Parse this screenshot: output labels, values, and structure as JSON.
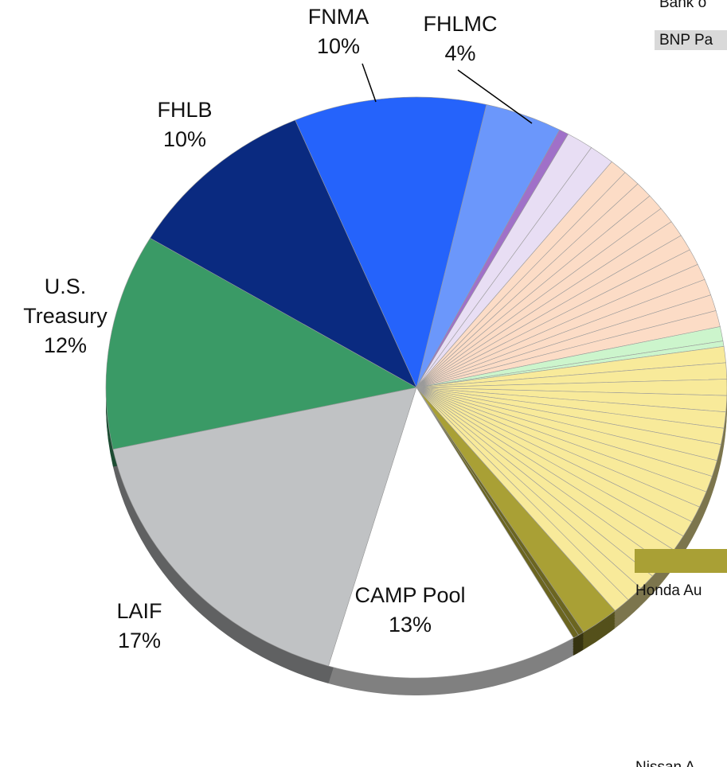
{
  "chart_data": {
    "type": "pie",
    "categories": [
      "FNMA",
      "FHLMC",
      null,
      null,
      null,
      null,
      null,
      null,
      null,
      null,
      null,
      null,
      null,
      null,
      null,
      null,
      null,
      null,
      null,
      null,
      null,
      null,
      null,
      null,
      null,
      null,
      null,
      null,
      null,
      null,
      null,
      null,
      null,
      null,
      null,
      null,
      null,
      null,
      null,
      null,
      "CAMP Pool",
      "LAIF",
      "U.S. Treasury",
      "FHLB"
    ],
    "values": [
      10,
      4,
      0.5,
      1.4,
      1.3,
      0.9,
      0.9,
      0.9,
      0.9,
      0.9,
      0.9,
      0.9,
      0.9,
      0.9,
      0.9,
      0.9,
      0.9,
      0.8,
      0.3,
      0.9,
      0.9,
      0.9,
      0.9,
      0.9,
      0.9,
      0.9,
      0.9,
      0.9,
      0.9,
      0.9,
      0.9,
      0.9,
      0.9,
      0.9,
      0.9,
      0.9,
      0.9,
      2.0,
      0.3,
      0.3,
      13,
      17,
      12,
      10
    ],
    "value_labels": [
      "10%",
      "4%",
      null,
      null,
      null,
      null,
      null,
      null,
      null,
      null,
      null,
      null,
      null,
      null,
      null,
      null,
      null,
      null,
      null,
      null,
      null,
      null,
      null,
      null,
      null,
      null,
      null,
      null,
      null,
      null,
      null,
      null,
      null,
      null,
      null,
      null,
      null,
      null,
      null,
      null,
      "13%",
      "17%",
      "12%",
      "10%"
    ],
    "colors": [
      "#2563fb",
      "#6b97fb",
      "#a070c8",
      "#e8def4",
      "#e8def4",
      "#fcdcc6",
      "#fcdcc6",
      "#fcdcc6",
      "#fcdcc6",
      "#fcdcc6",
      "#fcdcc6",
      "#fcdcc6",
      "#fcdcc6",
      "#fcdcc6",
      "#fcdcc6",
      "#fcdcc6",
      "#fcdcc6",
      "#ccf5cc",
      "#ccf5cc",
      "#f8ea9a",
      "#f8ea9a",
      "#f8ea9a",
      "#f8ea9a",
      "#f8ea9a",
      "#f8ea9a",
      "#f8ea9a",
      "#f8ea9a",
      "#f8ea9a",
      "#f8ea9a",
      "#f8ea9a",
      "#f8ea9a",
      "#f8ea9a",
      "#f8ea9a",
      "#f8ea9a",
      "#f8ea9a",
      "#f8ea9a",
      "#f8ea9a",
      "#a9a035",
      "#6b6520",
      "#6b6520",
      "#ffffff",
      "#c0c2c4",
      "#3a9a66",
      "#0a2a80"
    ],
    "legend_fragments": [
      "Bank o",
      "BNP Pa",
      "Honda Au",
      "Nissan A"
    ]
  }
}
